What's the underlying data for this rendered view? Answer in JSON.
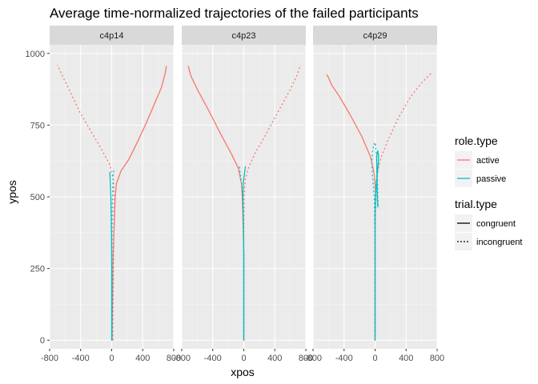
{
  "chart_data": {
    "type": "line",
    "title": "Average time-normalized trajectories of the failed participants",
    "xlabel": "xpos",
    "ylabel": "ypos",
    "xlim": [
      -800,
      800
    ],
    "ylim": [
      -30,
      1030
    ],
    "x_ticks": [
      -800,
      -400,
      0,
      400,
      800
    ],
    "y_ticks": [
      0,
      250,
      500,
      750,
      1000
    ],
    "grid": true,
    "legend_position": "right",
    "colors": {
      "active": "#F8766D",
      "passive": "#00BFC4"
    },
    "legends": [
      {
        "title": "role.type",
        "entries": [
          {
            "label": "active",
            "key": "active"
          },
          {
            "label": "passive",
            "key": "passive"
          }
        ]
      },
      {
        "title": "trial.type",
        "entries": [
          {
            "label": "congruent",
            "key": "solid"
          },
          {
            "label": "incongruent",
            "key": "dotted"
          }
        ]
      }
    ],
    "panels": [
      {
        "label": "c4p14",
        "series": [
          {
            "role": "active",
            "trial": "congruent",
            "points": [
              [
                5,
                0
              ],
              [
                10,
                150
              ],
              [
                20,
                300
              ],
              [
                35,
                420
              ],
              [
                45,
                500
              ],
              [
                60,
                545
              ],
              [
                120,
                590
              ],
              [
                220,
                630
              ],
              [
                330,
                690
              ],
              [
                450,
                760
              ],
              [
                560,
                830
              ],
              [
                640,
                880
              ],
              [
                690,
                930
              ],
              [
                705,
                955
              ]
            ]
          },
          {
            "role": "active",
            "trial": "incongruent",
            "points": [
              [
                15,
                0
              ],
              [
                20,
                150
              ],
              [
                25,
                300
              ],
              [
                30,
                420
              ],
              [
                35,
                500
              ],
              [
                20,
                560
              ],
              [
                -20,
                610
              ],
              [
                -120,
                660
              ],
              [
                -270,
                730
              ],
              [
                -420,
                800
              ],
              [
                -560,
                880
              ],
              [
                -650,
                930
              ],
              [
                -700,
                960
              ]
            ]
          },
          {
            "role": "passive",
            "trial": "congruent",
            "points": [
              [
                0,
                0
              ],
              [
                0,
                150
              ],
              [
                0,
                300
              ],
              [
                -5,
                420
              ],
              [
                -10,
                500
              ],
              [
                -15,
                540
              ],
              [
                -20,
                560
              ],
              [
                -25,
                585
              ]
            ]
          },
          {
            "role": "passive",
            "trial": "incongruent",
            "points": [
              [
                5,
                0
              ],
              [
                5,
                100
              ],
              [
                10,
                200
              ],
              [
                5,
                300
              ],
              [
                5,
                420
              ],
              [
                10,
                500
              ],
              [
                15,
                545
              ],
              [
                20,
                575
              ],
              [
                30,
                600
              ]
            ]
          }
        ]
      },
      {
        "label": "c4p23",
        "series": [
          {
            "role": "active",
            "trial": "congruent",
            "points": [
              [
                0,
                0
              ],
              [
                0,
                150
              ],
              [
                0,
                300
              ],
              [
                -10,
                420
              ],
              [
                -20,
                500
              ],
              [
                -30,
                545
              ],
              [
                -70,
                600
              ],
              [
                -160,
                650
              ],
              [
                -300,
                720
              ],
              [
                -450,
                800
              ],
              [
                -590,
                870
              ],
              [
                -680,
                920
              ],
              [
                -715,
                955
              ]
            ]
          },
          {
            "role": "active",
            "trial": "incongruent",
            "points": [
              [
                0,
                0
              ],
              [
                0,
                150
              ],
              [
                0,
                300
              ],
              [
                0,
                420
              ],
              [
                5,
                500
              ],
              [
                20,
                560
              ],
              [
                60,
                600
              ],
              [
                140,
                650
              ],
              [
                270,
                710
              ],
              [
                430,
                790
              ],
              [
                590,
                870
              ],
              [
                690,
                925
              ],
              [
                730,
                960
              ]
            ]
          },
          {
            "role": "passive",
            "trial": "congruent",
            "points": [
              [
                0,
                0
              ],
              [
                0,
                150
              ],
              [
                0,
                300
              ],
              [
                -5,
                420
              ],
              [
                -10,
                500
              ],
              [
                -5,
                550
              ],
              [
                10,
                585
              ],
              [
                20,
                605
              ]
            ]
          },
          {
            "role": "passive",
            "trial": "incongruent",
            "points": [
              [
                0,
                0
              ],
              [
                0,
                150
              ],
              [
                0,
                300
              ],
              [
                -5,
                420
              ],
              [
                -15,
                500
              ],
              [
                -30,
                550
              ],
              [
                -45,
                580
              ],
              [
                -55,
                605
              ]
            ]
          }
        ]
      },
      {
        "label": "c4p29",
        "series": [
          {
            "role": "active",
            "trial": "congruent",
            "points": [
              [
                0,
                0
              ],
              [
                0,
                150
              ],
              [
                0,
                300
              ],
              [
                0,
                450
              ],
              [
                5,
                520
              ],
              [
                -10,
                580
              ],
              [
                -60,
                640
              ],
              [
                -170,
                710
              ],
              [
                -330,
                790
              ],
              [
                -460,
                850
              ],
              [
                -560,
                890
              ],
              [
                -600,
                915
              ],
              [
                -620,
                925
              ]
            ]
          },
          {
            "role": "active",
            "trial": "incongruent",
            "points": [
              [
                0,
                0
              ],
              [
                0,
                150
              ],
              [
                0,
                300
              ],
              [
                5,
                450
              ],
              [
                15,
                530
              ],
              [
                35,
                590
              ],
              [
                80,
                640
              ],
              [
                170,
                700
              ],
              [
                310,
                780
              ],
              [
                460,
                850
              ],
              [
                610,
                900
              ],
              [
                720,
                930
              ]
            ]
          },
          {
            "role": "passive",
            "trial": "congruent",
            "points": [
              [
                0,
                0
              ],
              [
                0,
                150
              ],
              [
                0,
                300
              ],
              [
                0,
                420
              ],
              [
                5,
                500
              ],
              [
                20,
                560
              ],
              [
                40,
                610
              ],
              [
                45,
                640
              ],
              [
                35,
                660
              ],
              [
                20,
                640
              ],
              [
                25,
                560
              ],
              [
                30,
                490
              ],
              [
                35,
                465
              ]
            ]
          },
          {
            "role": "passive",
            "trial": "incongruent",
            "points": [
              [
                0,
                0
              ],
              [
                0,
                150
              ],
              [
                0,
                300
              ],
              [
                -5,
                420
              ],
              [
                -10,
                500
              ],
              [
                -30,
                560
              ],
              [
                -40,
                610
              ],
              [
                -35,
                650
              ],
              [
                -20,
                680
              ],
              [
                0,
                690
              ],
              [
                20,
                640
              ],
              [
                30,
                560
              ],
              [
                40,
                470
              ],
              [
                45,
                460
              ]
            ]
          }
        ]
      }
    ]
  }
}
